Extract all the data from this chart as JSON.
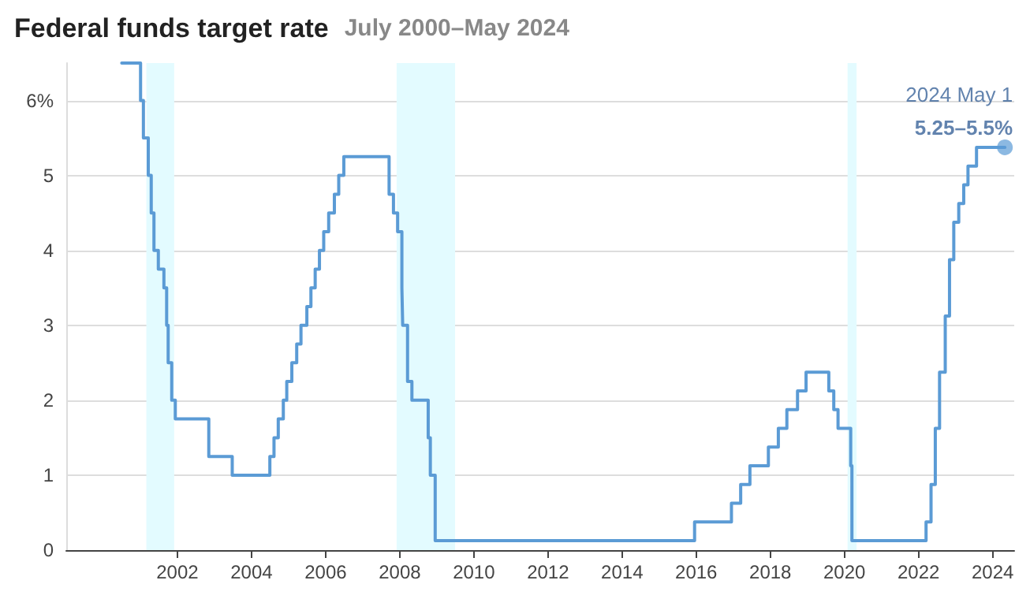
{
  "chart_data": {
    "type": "step",
    "title": "Federal funds target rate",
    "subtitle": "July 2000–May 2024",
    "x": [
      "2000-07-01",
      "2001-01-03",
      "2001-01-31",
      "2001-03-20",
      "2001-04-18",
      "2001-05-15",
      "2001-06-27",
      "2001-08-21",
      "2001-09-17",
      "2001-10-02",
      "2001-11-06",
      "2001-12-11",
      "2002-11-06",
      "2003-06-25",
      "2004-06-30",
      "2004-08-10",
      "2004-09-21",
      "2004-11-10",
      "2004-12-14",
      "2005-02-02",
      "2005-03-22",
      "2005-05-03",
      "2005-06-30",
      "2005-08-09",
      "2005-09-20",
      "2005-11-01",
      "2005-12-13",
      "2006-01-31",
      "2006-03-28",
      "2006-05-10",
      "2006-06-29",
      "2007-09-18",
      "2007-10-31",
      "2007-12-11",
      "2008-01-22",
      "2008-01-30",
      "2008-03-18",
      "2008-04-30",
      "2008-10-08",
      "2008-10-29",
      "2008-12-16",
      "2015-12-16",
      "2016-12-14",
      "2017-03-15",
      "2017-06-14",
      "2017-12-13",
      "2018-03-21",
      "2018-06-13",
      "2018-09-26",
      "2018-12-19",
      "2019-07-31",
      "2019-09-18",
      "2019-10-30",
      "2020-03-03",
      "2020-03-15",
      "2022-03-16",
      "2022-05-04",
      "2022-06-15",
      "2022-07-27",
      "2022-09-21",
      "2022-11-02",
      "2022-12-14",
      "2023-02-01",
      "2023-03-22",
      "2023-05-03",
      "2023-07-26",
      "2024-05-01"
    ],
    "series": [
      {
        "color": "#5b9bd5",
        "values": [
          6.5,
          6,
          5.5,
          5,
          4.5,
          4,
          3.75,
          3.5,
          3,
          2.5,
          2,
          1.75,
          1.25,
          1,
          1.25,
          1.5,
          1.75,
          2,
          2.25,
          2.5,
          2.75,
          3,
          3.25,
          3.5,
          3.75,
          4,
          4.25,
          4.5,
          4.75,
          5,
          5.25,
          4.75,
          4.5,
          4.25,
          3.5,
          3,
          2.25,
          2,
          1.5,
          1,
          0.125,
          0.375,
          0.625,
          0.875,
          1.125,
          1.375,
          1.625,
          1.875,
          2.125,
          2.375,
          2.125,
          1.875,
          1.625,
          1.125,
          0.125,
          0.375,
          0.875,
          1.625,
          2.375,
          3.125,
          3.875,
          4.375,
          4.625,
          4.875,
          5.125,
          5.375,
          5.375
        ]
      }
    ],
    "xlim": [
      "1999-01-01",
      "2024-08-01"
    ],
    "xticks": [
      "2002",
      "2004",
      "2006",
      "2008",
      "2010",
      "2012",
      "2014",
      "2016",
      "2018",
      "2020",
      "2022",
      "2024"
    ],
    "ylim": [
      0,
      6.5
    ],
    "yticks": [
      0,
      1,
      2,
      3,
      4,
      5,
      {
        "value": 6,
        "label": "6%"
      }
    ],
    "grid": "y",
    "marker": "none",
    "line_style": "solid",
    "bands": [
      {
        "axis": "x",
        "from": "2001-03-01",
        "to": "2001-11-30",
        "color": "#e3fbff"
      },
      {
        "axis": "x",
        "from": "2007-12-01",
        "to": "2009-06-30",
        "color": "#e3fbff"
      },
      {
        "axis": "x",
        "from": "2020-02-01",
        "to": "2020-04-30",
        "color": "#e3fbff"
      }
    ],
    "annotations": [
      {
        "text": "2024 May 1",
        "x": "2024-05-01",
        "y": 5.375
      },
      {
        "text": "5.25–5.5%",
        "x": "2024-05-01",
        "y": 5.375
      }
    ]
  }
}
